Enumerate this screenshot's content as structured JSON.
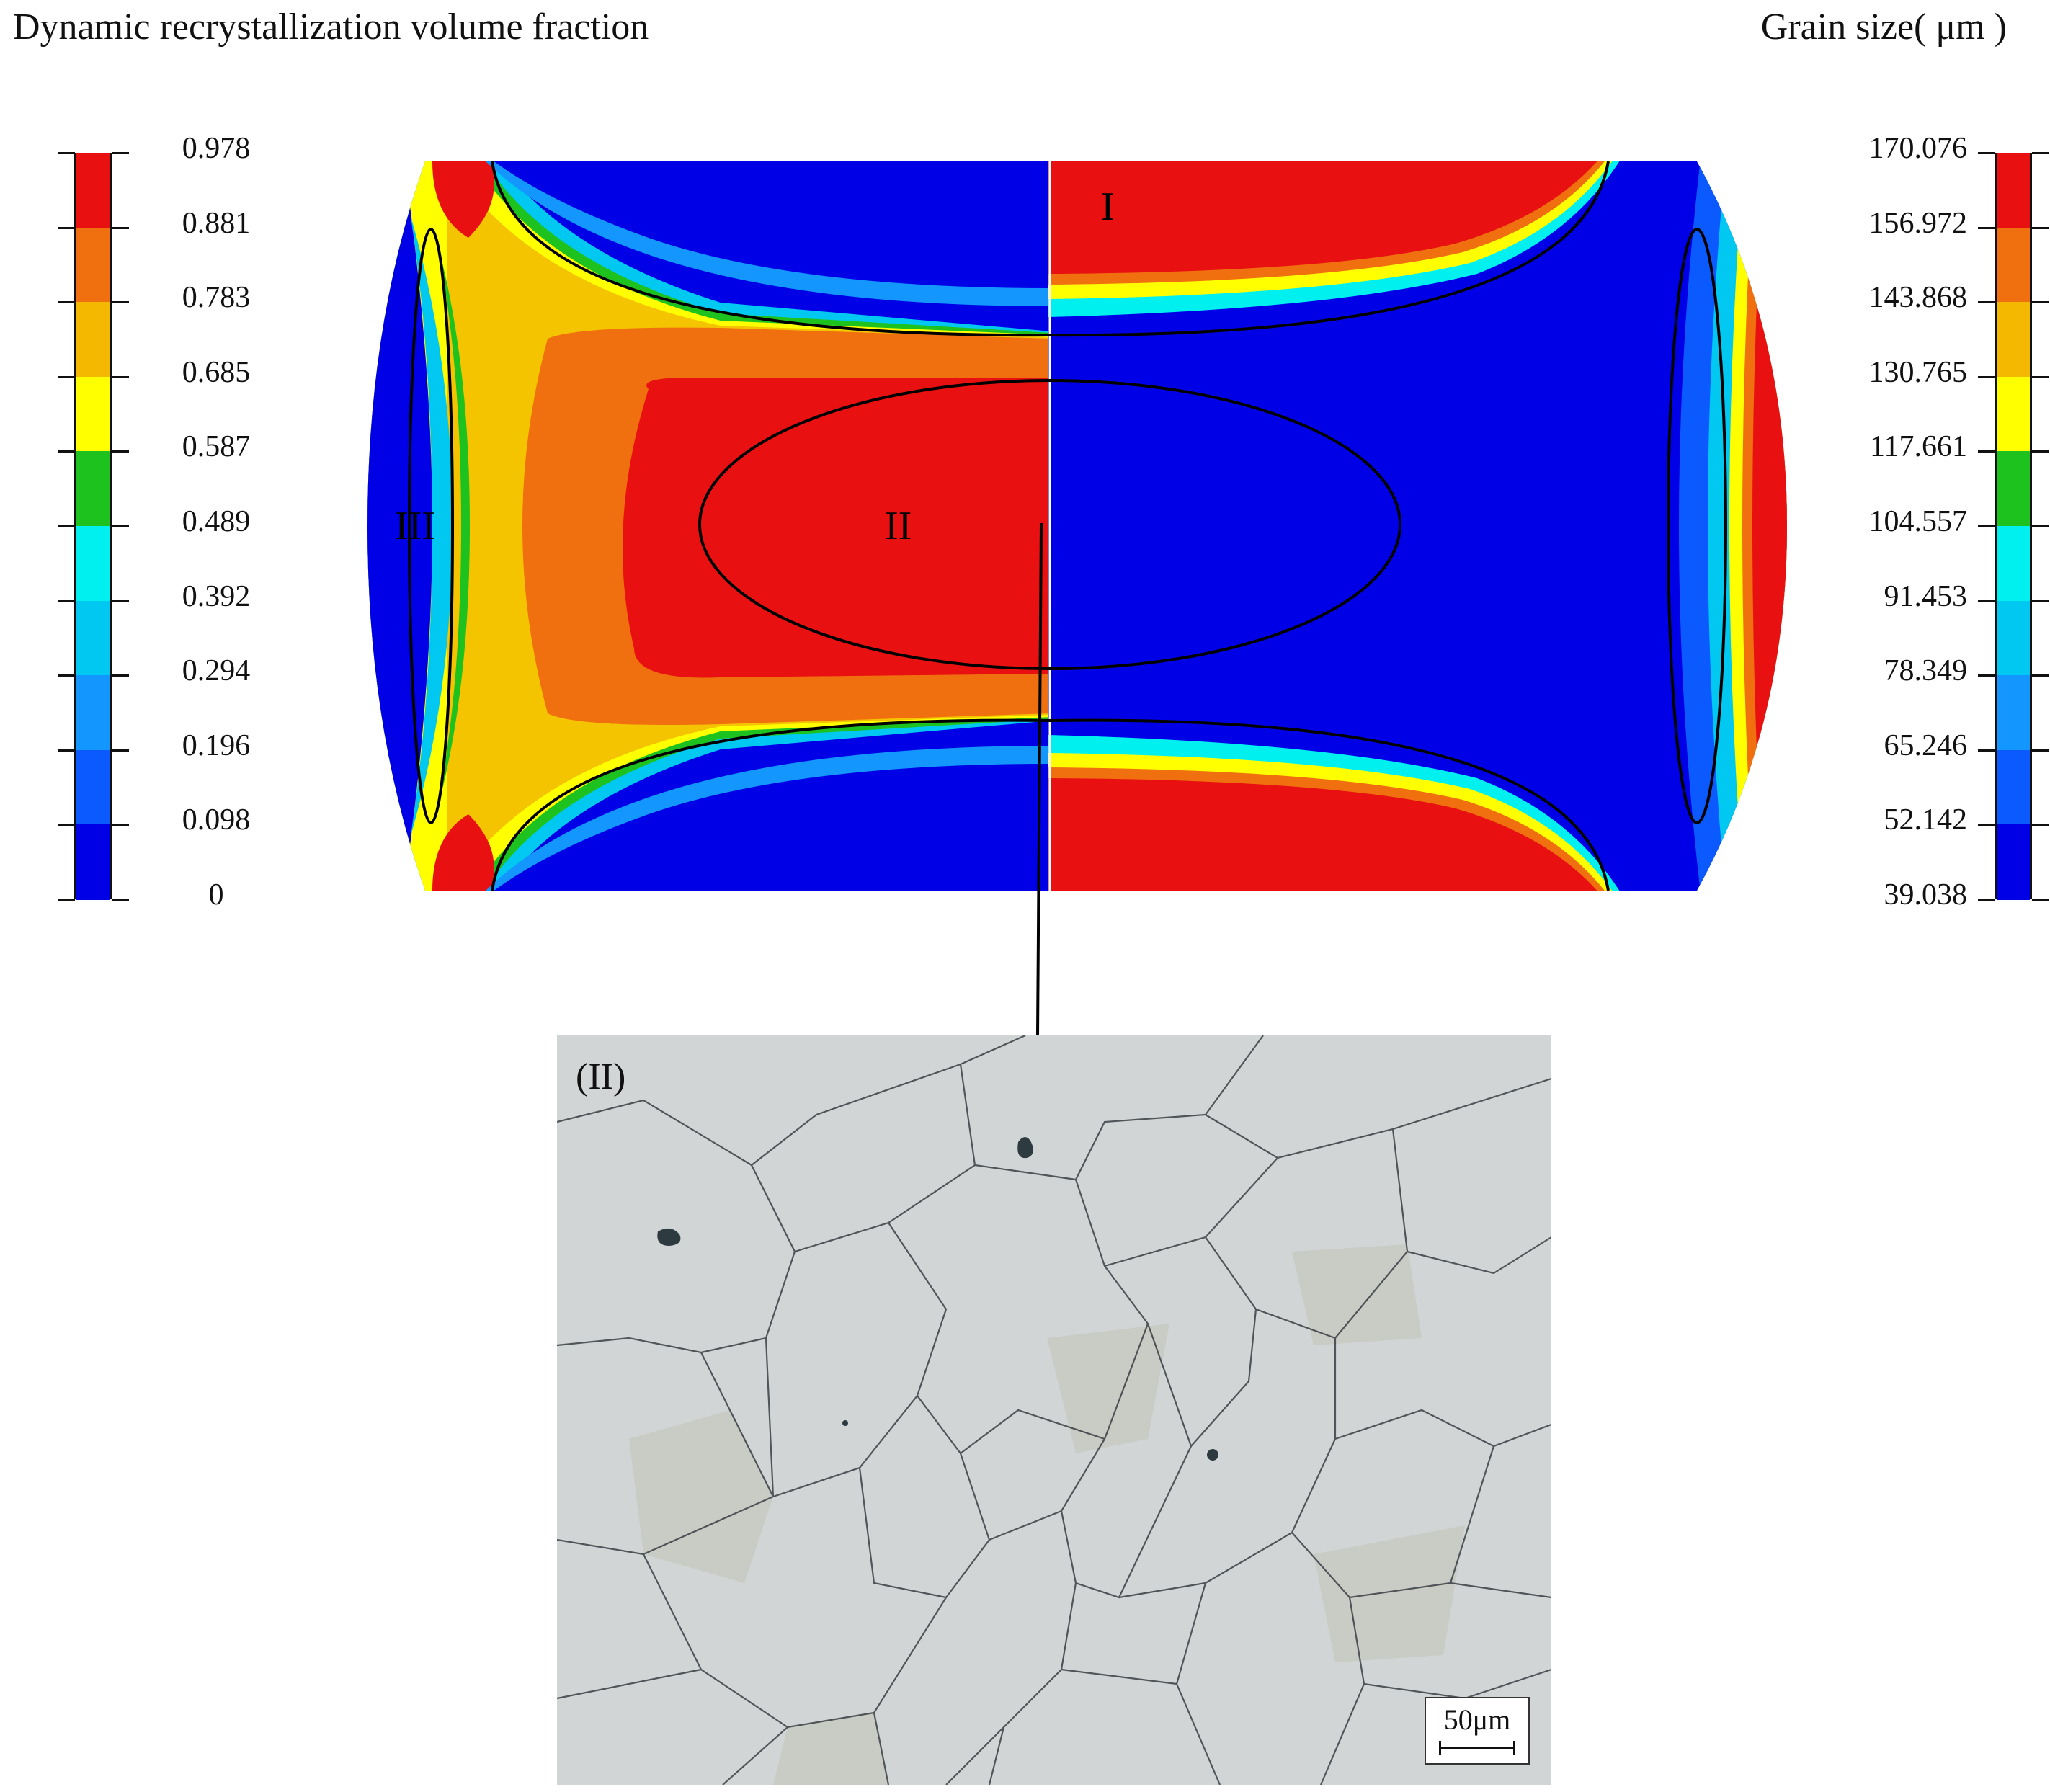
{
  "titles": {
    "left": "Dynamic recrystallization volume fraction",
    "right": "Grain size( μm )"
  },
  "colorbar_colors": [
    "#e81010",
    "#f07010",
    "#f5b800",
    "#ffff00",
    "#1ec21e",
    "#00f0f0",
    "#00c8f0",
    "#1496ff",
    "#0a5aff",
    "#0000e6"
  ],
  "left_scale": {
    "ticks": [
      "0.978",
      "0.881",
      "0.783",
      "0.685",
      "0.587",
      "0.489",
      "0.392",
      "0.294",
      "0.196",
      "0.098",
      "0"
    ]
  },
  "right_scale": {
    "ticks": [
      "170.076",
      "156.972",
      "143.868",
      "130.765",
      "117.661",
      "104.557",
      "91.453",
      "78.349",
      "65.246",
      "52.142",
      "39.038"
    ]
  },
  "regions": {
    "I": "I",
    "II": "II",
    "III": "III"
  },
  "micrograph": {
    "label": "(II)",
    "scale_bar": "50μm"
  }
}
